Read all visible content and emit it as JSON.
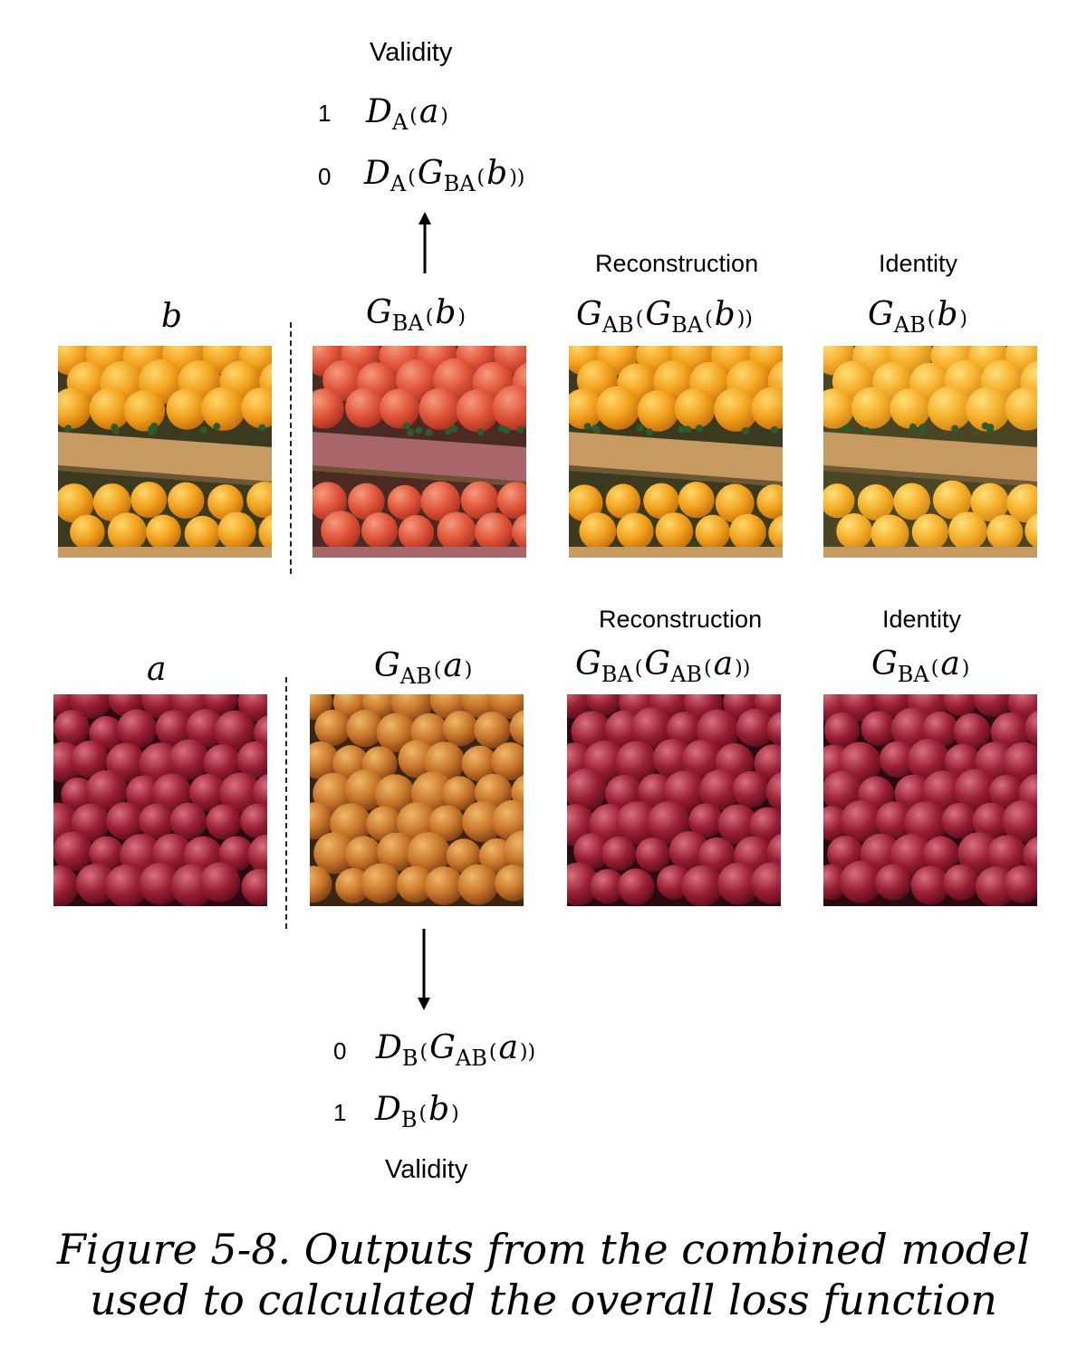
{
  "top": {
    "validity_label": "Validity",
    "real_value": "1",
    "fake_value": "0"
  },
  "bottom": {
    "validity_label": "Validity",
    "fake_value": "0",
    "real_value": "1"
  },
  "row_b": {
    "input_label": "b",
    "reconstruction_heading": "Reconstruction",
    "identity_heading": "Identity",
    "images": [
      "oranges-original",
      "oranges-translated-to-apples",
      "oranges-reconstructed",
      "oranges-identity"
    ]
  },
  "row_a": {
    "input_label": "a",
    "reconstruction_heading": "Reconstruction",
    "identity_heading": "Identity",
    "images": [
      "apples-original",
      "apples-translated-to-oranges",
      "apples-reconstructed",
      "apples-identity"
    ]
  },
  "symbols": {
    "D": "D",
    "G": "G",
    "a": "a",
    "b": "b",
    "A": "A",
    "B": "B",
    "AB": "AB",
    "BA": "BA"
  },
  "colors": {
    "orange": "#f2a21e",
    "apple_red": "#9a1f35",
    "translated_red": "#e0553a",
    "translated_orange": "#c9772b",
    "crate": "#c79a62",
    "leaf": "#2f5a2a"
  },
  "caption": {
    "line1": "Figure 5-8. Outputs from the combined model",
    "line2": "used to calculated the overall loss function"
  }
}
